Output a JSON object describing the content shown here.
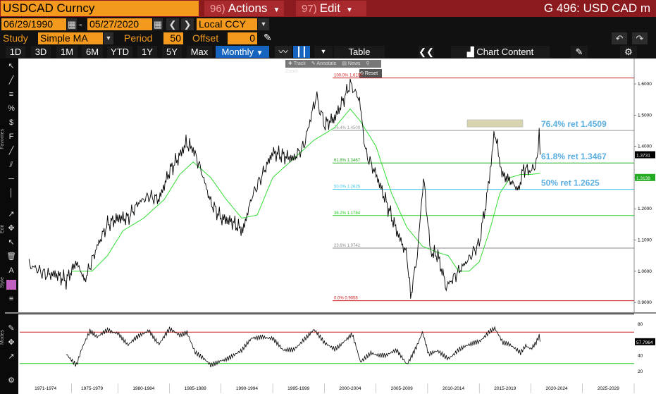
{
  "header": {
    "ticker": "USDCAD Curncy",
    "actions": {
      "num": "96)",
      "label": "Actions"
    },
    "edit": {
      "num": "97)",
      "label": "Edit"
    },
    "security": "G 496: USD CAD m"
  },
  "range": {
    "start": "06/29/1990",
    "sep": "-",
    "end": "05/27/2020",
    "currency": "Local CCY"
  },
  "study": {
    "study_label": "Study",
    "study_value": "Simple MA",
    "period_label": "Period",
    "period_value": "50",
    "offset_label": "Offset",
    "offset_value": "0"
  },
  "toolbar": {
    "periods": [
      "1D",
      "3D",
      "1M",
      "6M",
      "YTD",
      "1Y",
      "5Y",
      "Max"
    ],
    "frequency": "Monthly",
    "table": "Table",
    "chart_content": "Chart Content"
  },
  "overlay_tools": {
    "track": "Track",
    "annotate": "Annotate",
    "news": "News",
    "zoom": "Zoom",
    "reset": "Reset"
  },
  "colors": {
    "price": "#000000",
    "ma": "#33dd33",
    "fib_top": "#cc2222",
    "fib_76": "#999999",
    "fib_618": "#22aa22",
    "fib_50": "#44c8e8",
    "fib_382": "#22cc22",
    "fib_236": "#888888",
    "fib_0": "#cc2222",
    "shade": "#d8d4b0"
  },
  "chart_data": {
    "type": "line",
    "x_tick_labels": [
      "1971-1974",
      "1975-1979",
      "1980-1984",
      "1985-1989",
      "1990-1994",
      "1995-1999",
      "2000-2004",
      "2005-2009",
      "2010-2014",
      "2015-2019",
      "2020-2024",
      "2025-2029"
    ],
    "x_range": [
      1970,
      2029.5
    ],
    "y_range": [
      0.88,
      1.67
    ],
    "y_ticks": [
      "0.9000",
      "1.0000",
      "1.1000",
      "1.2000",
      "1.3000",
      "1.4000",
      "1.5000",
      "1.6000"
    ],
    "last_price_label": "1.3731",
    "ma_label": "1.3138",
    "fib_levels": [
      {
        "name": "100.0%",
        "label": "100.0% 1.6190",
        "value": 1.619
      },
      {
        "name": "76.4%",
        "label": "76.4% 1.4509",
        "value": 1.4509
      },
      {
        "name": "61.8%",
        "label": "61.8% 1.3467",
        "value": 1.3467
      },
      {
        "name": "50.0%",
        "label": "50.0% 1.2625",
        "value": 1.2625
      },
      {
        "name": "38.2%",
        "label": "38.2% 1.1784",
        "value": 1.1784
      },
      {
        "name": "23.6%",
        "label": "23.6% 1.0742",
        "value": 1.0742
      },
      {
        "name": "0.0%",
        "label": "0.0% 0.9058",
        "value": 0.9058
      }
    ],
    "annotations": [
      "76.4% ret 1.4509",
      "61.8% ret 1.3467",
      "50% ret 1.2625"
    ],
    "series": [
      {
        "values": [
          [
            1970.9,
            1.02
          ],
          [
            1971.5,
            1.01
          ],
          [
            1972.5,
            0.99
          ],
          [
            1973.5,
            0.99
          ],
          [
            1974.5,
            0.97
          ],
          [
            1975.5,
            1.03
          ],
          [
            1976.3,
            0.97
          ],
          [
            1977.5,
            1.08
          ],
          [
            1978.5,
            1.15
          ],
          [
            1979.5,
            1.17
          ],
          [
            1980.5,
            1.17
          ],
          [
            1981.5,
            1.22
          ],
          [
            1982.5,
            1.24
          ],
          [
            1983.5,
            1.23
          ],
          [
            1984.5,
            1.32
          ],
          [
            1985.5,
            1.37
          ],
          [
            1986.1,
            1.41
          ],
          [
            1986.8,
            1.39
          ],
          [
            1987.5,
            1.33
          ],
          [
            1988.5,
            1.22
          ],
          [
            1989.5,
            1.17
          ],
          [
            1990.5,
            1.16
          ],
          [
            1991.6,
            1.13
          ],
          [
            1992.5,
            1.24
          ],
          [
            1993.5,
            1.31
          ],
          [
            1994.5,
            1.38
          ],
          [
            1995.5,
            1.37
          ],
          [
            1996.5,
            1.36
          ],
          [
            1997.5,
            1.4
          ],
          [
            1998.7,
            1.56
          ],
          [
            1999.5,
            1.47
          ],
          [
            2000.5,
            1.49
          ],
          [
            2001.5,
            1.56
          ],
          [
            2002.0,
            1.6
          ],
          [
            2002.9,
            1.55
          ],
          [
            2003.5,
            1.38
          ],
          [
            2004.5,
            1.31
          ],
          [
            2005.5,
            1.22
          ],
          [
            2006.5,
            1.13
          ],
          [
            2007.5,
            1.05
          ],
          [
            2007.85,
            0.92
          ],
          [
            2008.5,
            1.05
          ],
          [
            2009.1,
            1.3
          ],
          [
            2009.8,
            1.06
          ],
          [
            2010.5,
            1.05
          ],
          [
            2011.3,
            0.95
          ],
          [
            2012.5,
            1.0
          ],
          [
            2013.5,
            1.04
          ],
          [
            2014.5,
            1.09
          ],
          [
            2015.3,
            1.25
          ],
          [
            2016.0,
            1.45
          ],
          [
            2016.7,
            1.31
          ],
          [
            2017.5,
            1.29
          ],
          [
            2018.3,
            1.26
          ],
          [
            2018.8,
            1.33
          ],
          [
            2019.5,
            1.32
          ],
          [
            2020.1,
            1.35
          ],
          [
            2020.3,
            1.45
          ],
          [
            2020.4,
            1.3731
          ]
        ]
      },
      {
        "values": [
          [
            1975.0,
            1.0
          ],
          [
            1977.0,
            1.0
          ],
          [
            1978.5,
            1.05
          ],
          [
            1980.0,
            1.13
          ],
          [
            1982.0,
            1.17
          ],
          [
            1984.0,
            1.23
          ],
          [
            1985.5,
            1.31
          ],
          [
            1986.8,
            1.35
          ],
          [
            1988.5,
            1.3
          ],
          [
            1990.0,
            1.23
          ],
          [
            1991.5,
            1.17
          ],
          [
            1993.0,
            1.18
          ],
          [
            1994.5,
            1.3
          ],
          [
            1996.5,
            1.36
          ],
          [
            1998.5,
            1.42
          ],
          [
            2000.5,
            1.46
          ],
          [
            2002.0,
            1.52
          ],
          [
            2003.0,
            1.48
          ],
          [
            2004.5,
            1.4
          ],
          [
            2006.0,
            1.25
          ],
          [
            2007.5,
            1.14
          ],
          [
            2009.0,
            1.08
          ],
          [
            2010.5,
            1.06
          ],
          [
            2011.5,
            1.05
          ],
          [
            2012.5,
            1.0
          ],
          [
            2013.5,
            1.0
          ],
          [
            2014.5,
            1.03
          ],
          [
            2015.5,
            1.13
          ],
          [
            2016.5,
            1.25
          ],
          [
            2017.5,
            1.3
          ],
          [
            2018.5,
            1.31
          ],
          [
            2019.5,
            1.31
          ],
          [
            2020.4,
            1.3138
          ]
        ]
      }
    ],
    "rsi": {
      "y_ticks": [
        "20",
        "40",
        "60",
        "80"
      ],
      "last_label": "57.7964",
      "upper": 70,
      "lower": 30,
      "values": [
        [
          1974.5,
          42
        ],
        [
          1975.5,
          30
        ],
        [
          1976.0,
          50
        ],
        [
          1976.8,
          70
        ],
        [
          1977.5,
          62
        ],
        [
          1978.5,
          74
        ],
        [
          1979.5,
          70
        ],
        [
          1980.5,
          52
        ],
        [
          1981.5,
          64
        ],
        [
          1982.5,
          74
        ],
        [
          1983.5,
          55
        ],
        [
          1984.5,
          72
        ],
        [
          1985.5,
          66
        ],
        [
          1986.2,
          72
        ],
        [
          1987.0,
          45
        ],
        [
          1988.5,
          26
        ],
        [
          1989.5,
          35
        ],
        [
          1990.5,
          40
        ],
        [
          1991.5,
          45
        ],
        [
          1992.5,
          62
        ],
        [
          1993.5,
          66
        ],
        [
          1994.5,
          62
        ],
        [
          1995.5,
          45
        ],
        [
          1996.5,
          48
        ],
        [
          1997.5,
          62
        ],
        [
          1998.5,
          72
        ],
        [
          1999.5,
          55
        ],
        [
          2000.5,
          50
        ],
        [
          2001.5,
          60
        ],
        [
          2002.2,
          66
        ],
        [
          2003.0,
          30
        ],
        [
          2004.0,
          45
        ],
        [
          2005.5,
          40
        ],
        [
          2006.5,
          45
        ],
        [
          2007.5,
          30
        ],
        [
          2008.5,
          55
        ],
        [
          2009.0,
          70
        ],
        [
          2009.6,
          40
        ],
        [
          2010.5,
          45
        ],
        [
          2011.5,
          38
        ],
        [
          2012.5,
          48
        ],
        [
          2013.5,
          52
        ],
        [
          2014.5,
          58
        ],
        [
          2015.5,
          73
        ],
        [
          2016.0,
          76
        ],
        [
          2016.8,
          55
        ],
        [
          2017.5,
          52
        ],
        [
          2018.5,
          45
        ],
        [
          2019.0,
          55
        ],
        [
          2019.5,
          50
        ],
        [
          2020.0,
          56
        ],
        [
          2020.3,
          64
        ],
        [
          2020.4,
          57.8
        ]
      ]
    }
  }
}
